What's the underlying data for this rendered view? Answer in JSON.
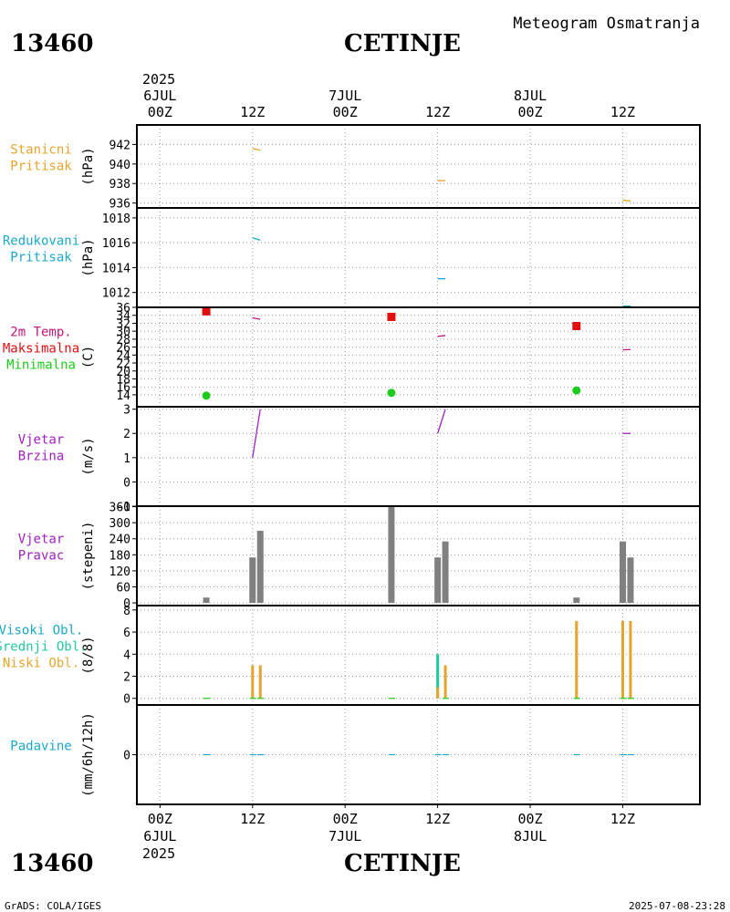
{
  "header": {
    "station_id": "13460",
    "station_name": "CETINJE",
    "meteogram_label": "Meteogram Osmatranja"
  },
  "footer": {
    "station_id": "13460",
    "station_name": "CETINJE",
    "credits": "GrADS: COLA/IGES",
    "timestamp": "2025-07-08-23:28"
  },
  "time_axis": {
    "top_year": "2025",
    "bottom_year": "2025",
    "ticks": [
      {
        "hour": 0,
        "label": "00Z",
        "date": "6JUL"
      },
      {
        "hour": 12,
        "label": "12Z",
        "date": ""
      },
      {
        "hour": 24,
        "label": "00Z",
        "date": "7JUL"
      },
      {
        "hour": 36,
        "label": "12Z",
        "date": ""
      },
      {
        "hour": 48,
        "label": "00Z",
        "date": "8JUL"
      },
      {
        "hour": 60,
        "label": "12Z",
        "date": ""
      }
    ],
    "range_hours": [
      -3,
      70
    ]
  },
  "colors": {
    "orange": "#e6a42c",
    "cyan": "#1aa8c8",
    "magenta": "#c0167a",
    "red": "#e01010",
    "green": "#1ccc1c",
    "purple": "#a020c0",
    "gray": "#808080",
    "teal": "#20c8a0"
  },
  "chart_data": [
    {
      "type": "line",
      "id": "station-pressure",
      "title_lines": [
        "Stanicni",
        "Pritisak"
      ],
      "title_colors": [
        "#e6a42c",
        "#e6a42c"
      ],
      "ylabel": "(hPa)",
      "ylim": [
        935.5,
        944
      ],
      "yticks": [
        936,
        938,
        940,
        942
      ],
      "series": [
        {
          "name": "Stanicni Pritisak",
          "color": "#e6a42c",
          "segments": [
            [
              12,
              941.6,
              13,
              941.4
            ],
            [
              36,
              938.3,
              37,
              938.3
            ],
            [
              60,
              936.3,
              61,
              936.2
            ]
          ]
        }
      ]
    },
    {
      "type": "line",
      "id": "reduced-pressure",
      "title_lines": [
        "Redukovani",
        "Pritisak"
      ],
      "title_colors": [
        "#1aa8c8",
        "#1aa8c8"
      ],
      "ylabel": "(hPa)",
      "ylim": [
        1010.8,
        1018.8
      ],
      "yticks": [
        1012,
        1014,
        1016,
        1018
      ],
      "series": [
        {
          "name": "Redukovani Pritisak",
          "color": "#1aa8c8",
          "segments": [
            [
              12,
              1016.4,
              13,
              1016.2
            ],
            [
              36,
              1013.1,
              37,
              1013.1
            ],
            [
              60,
              1010.9,
              61,
              1010.9
            ]
          ]
        }
      ]
    },
    {
      "type": "scatter",
      "id": "temperature",
      "title_lines": [
        "2m Temp.",
        "Maksimalna",
        "Minimalna"
      ],
      "title_colors": [
        "#c0167a",
        "#e01010",
        "#1ccc1c"
      ],
      "ylabel": "(C)",
      "ylim": [
        11,
        36
      ],
      "yticks": [
        14,
        16,
        18,
        20,
        22,
        24,
        26,
        28,
        30,
        32,
        34,
        36
      ],
      "series": [
        {
          "name": "2m Temp.",
          "color": "#c0167a",
          "segments": [
            [
              12,
              33.4,
              13,
              33.0
            ],
            [
              36,
              28.7,
              37,
              28.9
            ],
            [
              60,
              25.3,
              61,
              25.4
            ]
          ]
        },
        {
          "name": "Maksimalna",
          "color": "#e01010",
          "marker": "square",
          "points": [
            [
              6,
              35.0
            ],
            [
              30,
              33.6
            ],
            [
              54,
              31.3
            ]
          ]
        },
        {
          "name": "Minimalna",
          "color": "#1ccc1c",
          "marker": "circle",
          "points": [
            [
              6,
              13.8
            ],
            [
              30,
              14.5
            ],
            [
              54,
              15.1
            ]
          ]
        }
      ]
    },
    {
      "type": "line",
      "id": "wind-speed",
      "title_lines": [
        "Vjetar",
        "Brzina"
      ],
      "title_colors": [
        "#a020c0",
        "#a020c0"
      ],
      "ylabel": "(m/s)",
      "ylim": [
        -1,
        3.1
      ],
      "yticks": [
        -1,
        0,
        1,
        2,
        3
      ],
      "series": [
        {
          "name": "Vjetar Brzina",
          "color": "#a020c0",
          "segments": [
            [
              12,
              1.0,
              13,
              3.0
            ],
            [
              36,
              2.0,
              37,
              3.0
            ],
            [
              60,
              2.0,
              61,
              2.0
            ]
          ]
        }
      ]
    },
    {
      "type": "bar",
      "id": "wind-direction",
      "title_lines": [
        "Vjetar",
        "Pravac"
      ],
      "title_colors": [
        "#a020c0",
        "#a020c0"
      ],
      "ylabel": "(stepeni)",
      "ylim": [
        -10,
        362
      ],
      "yticks": [
        0,
        60,
        120,
        180,
        240,
        300,
        360
      ],
      "series": [
        {
          "name": "Pravac",
          "color": "#808080",
          "bars": [
            [
              6,
              20
            ],
            [
              12,
              170
            ],
            [
              13,
              270
            ],
            [
              30,
              360
            ],
            [
              36,
              170
            ],
            [
              37,
              230
            ],
            [
              54,
              20
            ],
            [
              60,
              230
            ],
            [
              61,
              170
            ]
          ]
        }
      ]
    },
    {
      "type": "bar",
      "id": "cloud-cover",
      "title_lines": [
        "Visoki Obl.",
        "Srednji Obl.",
        "Niski Obl."
      ],
      "title_colors": [
        "#1aa8c8",
        "#20c8a0",
        "#e6a42c"
      ],
      "ylabel": "(8/8)",
      "ylim": [
        -0.6,
        8.4
      ],
      "yticks": [
        0,
        2,
        4,
        6,
        8
      ],
      "series": [
        {
          "name": "Srednji Obl.",
          "color": "#20c8a0",
          "bars": [
            [
              36,
              4
            ]
          ]
        },
        {
          "name": "Niski Obl.",
          "color": "#e6a42c",
          "bars": [
            [
              12,
              3
            ],
            [
              13,
              3
            ],
            [
              36,
              1
            ],
            [
              37,
              3
            ],
            [
              54,
              7
            ],
            [
              60,
              7
            ],
            [
              61,
              7
            ]
          ]
        },
        {
          "name": "Visoki Obl.",
          "color": "#1ccc1c",
          "zero_marks": [
            6,
            12,
            13,
            30,
            37,
            54,
            60,
            61
          ]
        }
      ]
    },
    {
      "type": "line",
      "id": "precipitation",
      "title_lines": [
        "Padavine"
      ],
      "title_colors": [
        "#1aa8c8"
      ],
      "ylabel": "(mm/6h/12h)",
      "ylim": [
        -5,
        5
      ],
      "yticks": [
        0
      ],
      "series": [
        {
          "name": "Padavine",
          "color": "#1aa8c8",
          "zero_marks": [
            6,
            12,
            13,
            30,
            36,
            37,
            54,
            60,
            61
          ]
        }
      ]
    }
  ]
}
